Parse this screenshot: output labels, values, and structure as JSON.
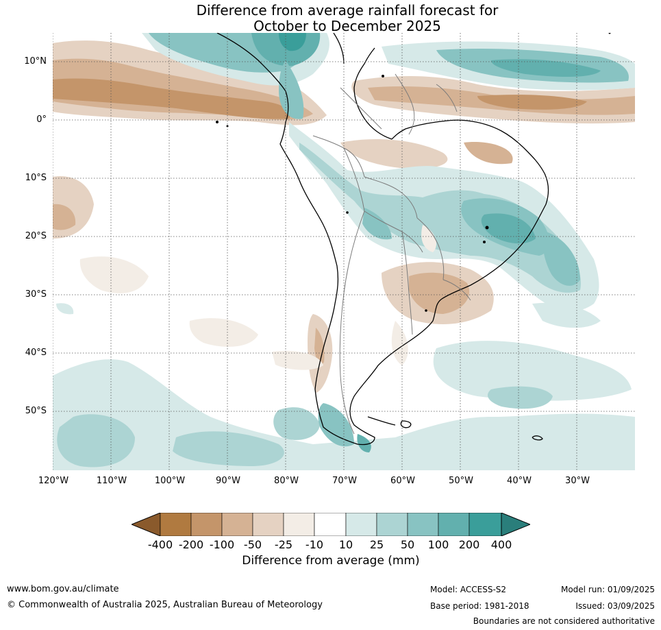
{
  "title": {
    "line1": "Difference from average rainfall forecast for",
    "line2": "October to December 2025"
  },
  "map": {
    "lat_labels": [
      "10°N",
      "0°",
      "10°S",
      "20°S",
      "30°S",
      "40°S",
      "50°S"
    ],
    "lon_labels": [
      "120°W",
      "110°W",
      "100°W",
      "90°W",
      "80°W",
      "70°W",
      "60°W",
      "50°W",
      "40°W",
      "30°W"
    ],
    "gridlines": "dotted"
  },
  "colorbar": {
    "ticks": [
      "-400",
      "-200",
      "-100",
      "-50",
      "-25",
      "-10",
      "10",
      "25",
      "50",
      "100",
      "200",
      "400"
    ],
    "colors": {
      "below_-400": "#8a5a2c",
      "-400_-200": "#b07a40",
      "-200_-100": "#c4956a",
      "-100_-50": "#d5b294",
      "-50_-25": "#e5d2c2",
      "-25_-10": "#f3ede6",
      "-10_10": "#ffffff",
      "10_25": "#d6e9e8",
      "25_50": "#acd4d3",
      "50_100": "#88c3c2",
      "100_200": "#62b0ae",
      "200_400": "#3a9e9a",
      "above_400": "#2a7e7b"
    },
    "label": "Difference from average (mm)"
  },
  "footer": {
    "website": "www.bom.gov.au/climate",
    "copyright": "© Commonwealth of Australia 2025, Australian Bureau of Meteorology",
    "model": "Model: ACCESS-S2",
    "base_period": "Base period: 1981-2018",
    "model_run": "Model run: 01/09/2025",
    "issued": "Issued: 03/09/2025",
    "disclaimer": "Boundaries are not considered authoritative"
  }
}
